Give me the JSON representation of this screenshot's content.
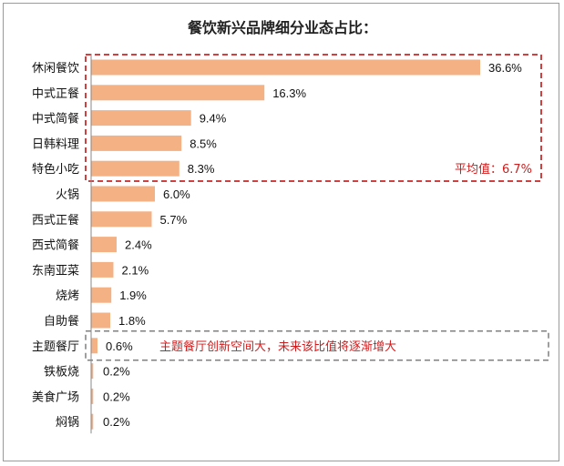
{
  "chart_data": {
    "type": "bar",
    "orientation": "horizontal",
    "title": "餐饮新兴品牌细分业态占比：",
    "categories": [
      "休闲餐饮",
      "中式正餐",
      "中式简餐",
      "日韩料理",
      "特色小吃",
      "火锅",
      "西式正餐",
      "西式简餐",
      "东南亚菜",
      "烧烤",
      "自助餐",
      "主题餐厅",
      "铁板烧",
      "美食广场",
      "焖锅"
    ],
    "values": [
      36.6,
      16.3,
      9.4,
      8.5,
      8.3,
      6.0,
      5.7,
      2.4,
      2.1,
      1.9,
      1.8,
      0.6,
      0.2,
      0.2,
      0.2
    ],
    "value_labels": [
      "36.6%",
      "16.3%",
      "9.4%",
      "8.5%",
      "8.3%",
      "6.0%",
      "5.7%",
      "2.4%",
      "2.1%",
      "1.9%",
      "1.8%",
      "0.6%",
      "0.2%",
      "0.2%",
      "0.2%"
    ],
    "xlim": [
      0,
      38
    ],
    "bar_color": "#f4b183",
    "annotations": [
      {
        "text": "平均值：6.7%",
        "color": "#d01c1c",
        "box_style": "dashed",
        "box_color": "#c00000"
      },
      {
        "text": "主题餐厅创新空间大，未来该比值将逐渐增大",
        "color": "#d01c1c",
        "box_style": "dashed",
        "box_color": "#7f7f7f"
      }
    ]
  }
}
